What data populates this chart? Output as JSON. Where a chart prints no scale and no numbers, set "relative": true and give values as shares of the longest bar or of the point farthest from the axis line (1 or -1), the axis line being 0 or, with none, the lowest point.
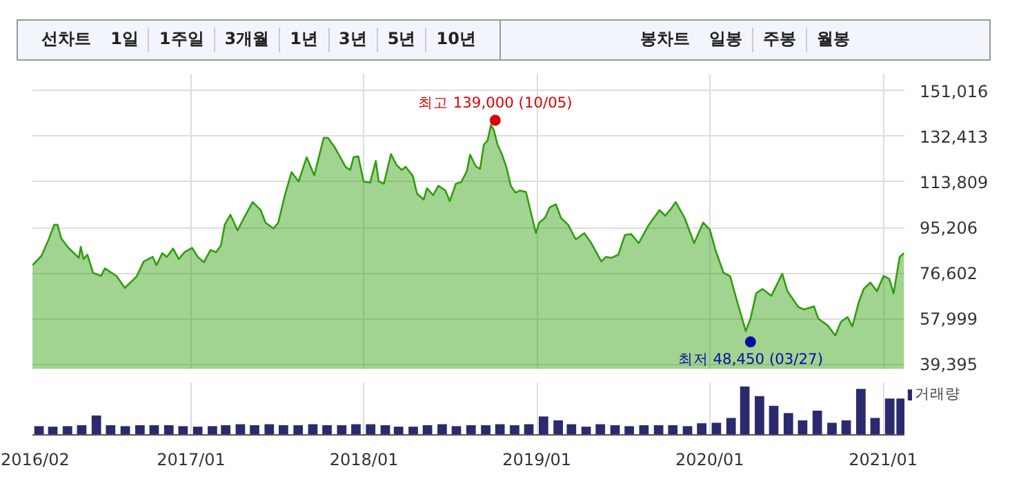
{
  "chart_data": [
    {
      "type": "other",
      "annotations": [
        "선차트",
        "1일",
        "1주일",
        "3개월",
        "1년",
        "3년",
        "5년",
        "10년",
        "봉차트",
        "일봉",
        "주봉",
        "월봉"
      ]
    },
    {
      "type": "area",
      "xlim": [
        "2016-02-01",
        "2021-02-15"
      ],
      "ylim": [
        37500,
        158000
      ],
      "xticks": [
        {
          "value": "2016-02-01",
          "label": null
        },
        {
          "value": "2017-01-01",
          "label": null
        },
        {
          "value": "2018-01-01",
          "label": null
        },
        {
          "value": "2019-01-01",
          "label": null
        },
        {
          "value": "2020-01-01",
          "label": null
        },
        {
          "value": "2021-01-01",
          "label": null
        }
      ],
      "yticks": [
        {
          "value": 39395,
          "label": "39,395"
        },
        {
          "value": 57999,
          "label": "57,999"
        },
        {
          "value": 76602,
          "label": "76,602"
        },
        {
          "value": 95206,
          "label": "95,206"
        },
        {
          "value": 113809,
          "label": "113,809"
        },
        {
          "value": 132413,
          "label": "132,413"
        },
        {
          "value": 151016,
          "label": "151,016"
        }
      ],
      "grid": true,
      "tick_labels": "y",
      "annotations": [
        {
          "text": "최고 139,000 (10/05)",
          "x": "2018-10-05",
          "y": 139000
        },
        {
          "text": "최저 48,450 (03/27)",
          "x": "2020-03-27",
          "y": 48450
        }
      ],
      "series": [
        {
          "color": "#2e9e0c",
          "x": [
            "2016-02-01",
            "2016-02-20",
            "2016-03-05",
            "2016-03-18",
            "2016-03-25",
            "2016-04-02",
            "2016-04-17",
            "2016-05-09",
            "2016-05-13",
            "2016-05-19",
            "2016-05-27",
            "2016-06-08",
            "2016-06-25",
            "2016-07-03",
            "2016-07-28",
            "2016-08-14",
            "2016-09-08",
            "2016-09-23",
            "2016-10-12",
            "2016-10-20",
            "2016-11-01",
            "2016-11-11",
            "2016-11-24",
            "2016-12-06",
            "2016-12-18",
            "2017-01-03",
            "2017-01-15",
            "2017-01-28",
            "2017-02-11",
            "2017-02-23",
            "2017-03-05",
            "2017-03-13",
            "2017-03-25",
            "2017-04-09",
            "2017-04-24",
            "2017-05-11",
            "2017-05-28",
            "2017-06-07",
            "2017-06-24",
            "2017-07-04",
            "2017-07-18",
            "2017-08-01",
            "2017-08-16",
            "2017-09-02",
            "2017-09-18",
            "2017-10-08",
            "2017-10-17",
            "2017-11-01",
            "2017-11-23",
            "2017-12-03",
            "2017-12-10",
            "2017-12-20",
            "2017-12-31",
            "2018-01-14",
            "2018-01-26",
            "2018-02-01",
            "2018-02-12",
            "2018-02-27",
            "2018-03-11",
            "2018-03-22",
            "2018-03-30",
            "2018-04-14",
            "2018-04-23",
            "2018-05-07",
            "2018-05-14",
            "2018-05-27",
            "2018-06-07",
            "2018-06-22",
            "2018-07-01",
            "2018-07-14",
            "2018-07-25",
            "2018-08-06",
            "2018-08-13",
            "2018-08-25",
            "2018-09-03",
            "2018-09-11",
            "2018-09-19",
            "2018-09-26",
            "2018-10-02",
            "2018-10-10",
            "2018-10-19",
            "2018-10-29",
            "2018-11-07",
            "2018-11-17",
            "2018-11-26",
            "2018-12-09",
            "2018-12-30",
            "2019-01-06",
            "2019-01-18",
            "2019-01-28",
            "2019-02-10",
            "2019-02-21",
            "2019-03-08",
            "2019-03-24",
            "2019-04-11",
            "2019-04-26",
            "2019-05-17",
            "2019-05-27",
            "2019-06-07",
            "2019-06-22",
            "2019-07-06",
            "2019-07-19",
            "2019-08-04",
            "2019-08-24",
            "2019-09-17",
            "2019-09-29",
            "2019-10-11",
            "2019-10-21",
            "2019-11-09",
            "2019-11-29",
            "2019-12-18",
            "2020-01-01",
            "2020-01-13",
            "2020-01-30",
            "2020-02-13",
            "2020-02-27",
            "2020-03-17",
            "2020-03-27",
            "2020-04-08",
            "2020-04-21",
            "2020-05-10",
            "2020-06-02",
            "2020-06-13",
            "2020-07-06",
            "2020-07-18",
            "2020-08-08",
            "2020-08-17",
            "2020-09-06",
            "2020-09-22",
            "2020-10-04",
            "2020-10-18",
            "2020-10-28",
            "2020-11-11",
            "2020-11-21",
            "2020-12-05",
            "2020-12-19",
            "2021-01-02",
            "2021-01-14",
            "2021-01-23",
            "2021-02-05",
            "2021-02-14"
          ],
          "values": [
            79800,
            83600,
            89700,
            96300,
            96300,
            90700,
            86900,
            82800,
            87300,
            82300,
            84100,
            76700,
            75400,
            78500,
            75300,
            70500,
            75200,
            81300,
            83200,
            79800,
            84700,
            83200,
            86600,
            82300,
            85100,
            86900,
            83200,
            81000,
            86000,
            85100,
            87900,
            96300,
            100400,
            94000,
            99600,
            105600,
            102300,
            97200,
            94800,
            97200,
            108400,
            117800,
            114000,
            123900,
            116500,
            131800,
            131800,
            127700,
            120000,
            118700,
            123900,
            124300,
            114000,
            113500,
            122400,
            114000,
            113100,
            125200,
            120600,
            118700,
            120000,
            116300,
            109000,
            106600,
            111200,
            108400,
            112200,
            110300,
            106000,
            113100,
            113700,
            118100,
            124900,
            120200,
            119100,
            129000,
            130800,
            137000,
            135100,
            129000,
            125200,
            119600,
            112200,
            109400,
            110300,
            109700,
            92900,
            97200,
            99100,
            103400,
            104700,
            99100,
            96300,
            90300,
            92900,
            88800,
            81300,
            83200,
            82800,
            84100,
            92200,
            92500,
            88800,
            95900,
            102300,
            100000,
            102800,
            105600,
            99100,
            88800,
            97200,
            94400,
            86000,
            76700,
            75300,
            65500,
            52900,
            58000,
            68300,
            70100,
            67300,
            76300,
            69200,
            62700,
            61700,
            63000,
            58000,
            55200,
            51100,
            56700,
            58600,
            54800,
            64900,
            70100,
            72700,
            69200,
            75400,
            74200,
            68300,
            83200,
            84700
          ]
        }
      ]
    },
    {
      "type": "bar",
      "relative": true,
      "xlim": [
        "2016-02-01",
        "2021-02-15"
      ],
      "xticks": [
        {
          "value": "2016-02-01",
          "label": "2016/02"
        },
        {
          "value": "2017-01-01",
          "label": "2017/01"
        },
        {
          "value": "2018-01-01",
          "label": "2018/01"
        },
        {
          "value": "2019-01-01",
          "label": "2019/01"
        },
        {
          "value": "2020-01-01",
          "label": "2020/01"
        },
        {
          "value": "2021-01-01",
          "label": "2021/01"
        }
      ],
      "grid": "x",
      "tick_labels": "x",
      "legend": "right",
      "x": [
        "2016-02-15",
        "2016-03-15",
        "2016-04-15",
        "2016-05-15",
        "2016-06-15",
        "2016-07-15",
        "2016-08-15",
        "2016-09-15",
        "2016-10-15",
        "2016-11-15",
        "2016-12-15",
        "2017-01-15",
        "2017-02-15",
        "2017-03-15",
        "2017-04-15",
        "2017-05-15",
        "2017-06-15",
        "2017-07-15",
        "2017-08-15",
        "2017-09-15",
        "2017-10-15",
        "2017-11-15",
        "2017-12-15",
        "2018-01-15",
        "2018-02-15",
        "2018-03-15",
        "2018-04-15",
        "2018-05-15",
        "2018-06-15",
        "2018-07-15",
        "2018-08-15",
        "2018-09-15",
        "2018-10-15",
        "2018-11-15",
        "2018-12-15",
        "2019-01-15",
        "2019-02-15",
        "2019-03-15",
        "2019-04-15",
        "2019-05-15",
        "2019-06-15",
        "2019-07-15",
        "2019-08-15",
        "2019-09-15",
        "2019-10-15",
        "2019-11-15",
        "2019-12-15",
        "2020-01-15",
        "2020-02-15",
        "2020-03-15",
        "2020-04-15",
        "2020-05-15",
        "2020-06-15",
        "2020-07-15",
        "2020-08-15",
        "2020-09-15",
        "2020-10-15",
        "2020-11-15",
        "2020-12-15",
        "2021-01-15",
        "2021-02-08"
      ],
      "series": [
        {
          "name": "거래량",
          "color": "#2b2a6e",
          "values": [
            0.18,
            0.17,
            0.18,
            0.2,
            0.4,
            0.2,
            0.18,
            0.2,
            0.2,
            0.2,
            0.18,
            0.17,
            0.18,
            0.2,
            0.22,
            0.2,
            0.22,
            0.2,
            0.2,
            0.22,
            0.2,
            0.2,
            0.22,
            0.22,
            0.2,
            0.17,
            0.17,
            0.2,
            0.22,
            0.18,
            0.2,
            0.2,
            0.22,
            0.2,
            0.22,
            0.38,
            0.3,
            0.22,
            0.17,
            0.22,
            0.2,
            0.18,
            0.2,
            0.2,
            0.2,
            0.18,
            0.24,
            0.25,
            0.35,
            1.0,
            0.8,
            0.6,
            0.45,
            0.3,
            0.5,
            0.25,
            0.3,
            0.95,
            0.35,
            0.75,
            0.75
          ]
        }
      ]
    }
  ]
}
